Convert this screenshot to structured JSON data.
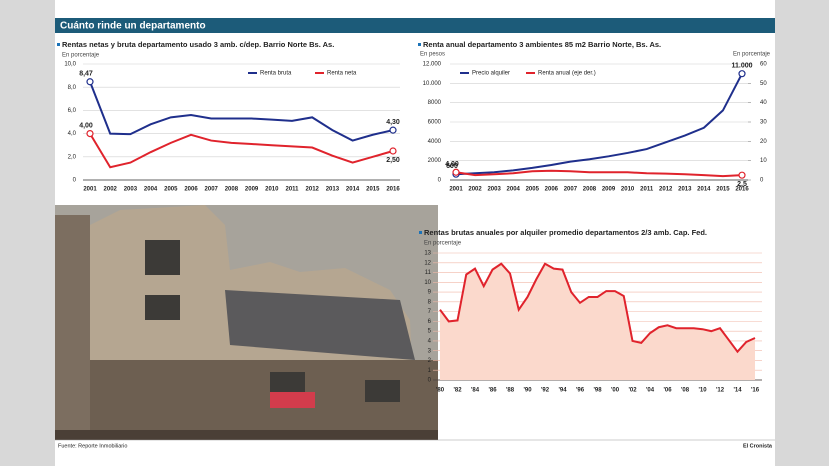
{
  "header": {
    "title": "Cuánto rinde un departamento"
  },
  "footer": {
    "source": "Fuente: Reporte Inmobiliario",
    "publisher": "El Cronista"
  },
  "chart_data": [
    {
      "type": "line",
      "title": "Rentas netas y bruta departamento usado 3 amb. c/dep. Barrio Norte Bs. As.",
      "subtitle": "En porcentaje",
      "categories": [
        "2001",
        "2002",
        "2003",
        "2004",
        "2005",
        "2006",
        "2007",
        "2008",
        "2009",
        "2010",
        "2011",
        "2012",
        "2013",
        "2014",
        "2015",
        "2016"
      ],
      "ylim": [
        0,
        10
      ],
      "yticks": [
        0,
        {
          "value": 2,
          "label": "2,0"
        },
        {
          "value": 4,
          "label": "4,0"
        },
        {
          "value": 6,
          "label": "6,0"
        },
        {
          "value": 8,
          "label": "8,0"
        },
        {
          "value": 10,
          "label": "10,0"
        }
      ],
      "grid": true,
      "series": [
        {
          "name": "Renta bruta",
          "color": "#1f2f8c",
          "values": [
            8.47,
            4.0,
            3.95,
            4.8,
            5.4,
            5.6,
            5.3,
            5.3,
            5.3,
            5.2,
            5.1,
            5.4,
            4.3,
            3.4,
            3.9,
            4.3
          ],
          "value_labels": [
            "8,47",
            null,
            null,
            null,
            null,
            null,
            null,
            null,
            null,
            null,
            null,
            null,
            null,
            null,
            null,
            "4,30"
          ]
        },
        {
          "name": "Renta neta",
          "color": "#e0232c",
          "values": [
            4.0,
            1.1,
            1.5,
            2.4,
            3.2,
            3.9,
            3.4,
            3.2,
            3.1,
            3.0,
            2.9,
            2.8,
            2.1,
            1.5,
            2.0,
            2.5
          ],
          "value_labels": [
            "4,00",
            null,
            null,
            null,
            null,
            null,
            null,
            null,
            null,
            null,
            null,
            null,
            null,
            null,
            null,
            "2,50"
          ]
        }
      ]
    },
    {
      "type": "line",
      "title": "Renta anual departamento 3 ambientes 85 m2 Barrio Norte, Bs. As.",
      "y_label": "En pesos",
      "y2_label": "En porcentaje",
      "categories": [
        "2001",
        "2002",
        "2003",
        "2004",
        "2005",
        "2006",
        "2007",
        "2008",
        "2009",
        "2010",
        "2011",
        "2012",
        "2013",
        "2014",
        "2015",
        "2016"
      ],
      "ylim": [
        0,
        12000
      ],
      "yticks": [
        0,
        2000,
        4000,
        6000,
        8000,
        {
          "value": 10000,
          "label": "10.000"
        },
        {
          "value": 12000,
          "label": "12.000"
        }
      ],
      "y2lim": [
        0,
        60
      ],
      "y2ticks": [
        0,
        10,
        20,
        30,
        40,
        50,
        60
      ],
      "grid": true,
      "series": [
        {
          "name": "Precio alquiler",
          "color": "#1f2f8c",
          "values": [
            600,
            700,
            800,
            1000,
            1250,
            1550,
            1900,
            2150,
            2450,
            2800,
            3200,
            3900,
            4600,
            5400,
            7200,
            11000
          ],
          "value_labels": [
            "600",
            null,
            null,
            null,
            null,
            null,
            null,
            null,
            null,
            null,
            null,
            null,
            null,
            null,
            null,
            "11.000"
          ]
        },
        {
          "name": "Renta anual (eje der.)",
          "color": "#e0232c",
          "axis": "y2",
          "values": [
            4.0,
            2.5,
            3.0,
            3.5,
            4.5,
            4.8,
            4.5,
            4.0,
            4.0,
            4.0,
            3.5,
            3.3,
            3.0,
            2.5,
            2.0,
            2.5
          ],
          "value_labels": [
            "4,00",
            null,
            null,
            null,
            null,
            null,
            null,
            null,
            null,
            null,
            null,
            null,
            null,
            null,
            null,
            "2,5"
          ]
        }
      ]
    },
    {
      "type": "area",
      "title": "Rentas brutas anuales por alquiler promedio departamentos 2/3 amb. Cap. Fed.",
      "subtitle": "En porcentaje",
      "categories": [
        "'80",
        null,
        "'82",
        null,
        "'84",
        null,
        "'86",
        null,
        "'88",
        null,
        "'90",
        null,
        "'92",
        null,
        "'94",
        null,
        "'96",
        null,
        "'98",
        null,
        "'00",
        null,
        "'02",
        null,
        "'04",
        null,
        "'06",
        null,
        "'08",
        null,
        "'10",
        null,
        "'12",
        null,
        "'14",
        null,
        "'16"
      ],
      "ylim": [
        0,
        13
      ],
      "yticks": [
        0,
        1,
        2,
        3,
        4,
        5,
        6,
        7,
        8,
        9,
        10,
        11,
        12,
        13
      ],
      "grid": true,
      "color": "#e0232c",
      "fill_color": "#fbd9cc",
      "values": [
        7.2,
        6.0,
        6.1,
        10.8,
        11.4,
        9.6,
        11.3,
        11.9,
        10.9,
        7.2,
        8.5,
        10.3,
        11.9,
        11.4,
        11.3,
        9.0,
        7.9,
        8.5,
        8.5,
        9.1,
        9.1,
        8.6,
        4.0,
        3.8,
        4.8,
        5.4,
        5.6,
        5.3,
        5.3,
        5.3,
        5.2,
        5.0,
        5.3,
        4.1,
        2.9,
        3.9,
        4.3
      ]
    }
  ]
}
